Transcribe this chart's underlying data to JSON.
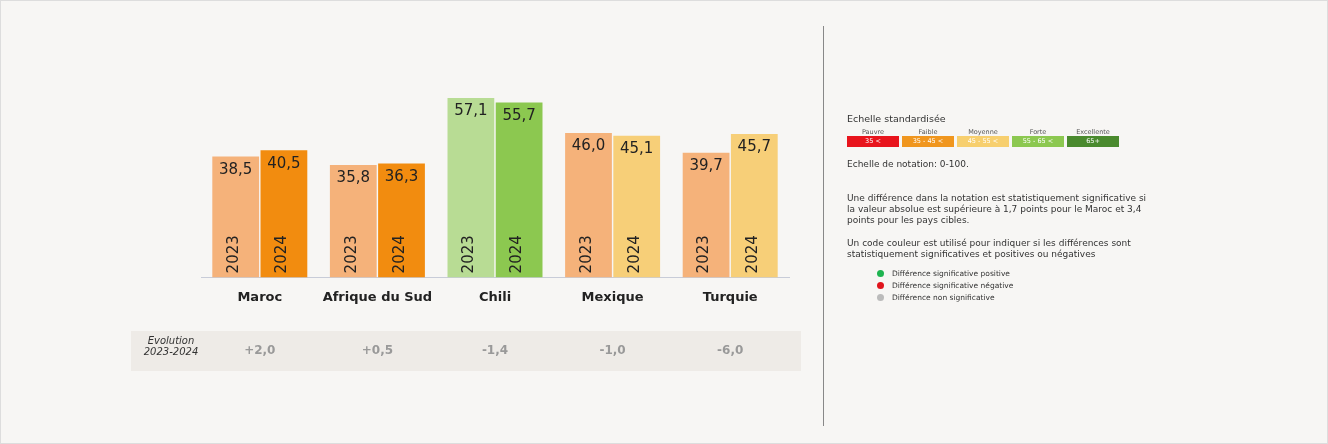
{
  "chart_data": {
    "type": "bar",
    "categories": [
      "Maroc",
      "Afrique du Sud",
      "Chili",
      "Mexique",
      "Turquie"
    ],
    "series": [
      {
        "name": "2023",
        "colors": [
          "#f5b27a",
          "#f5b27a",
          "#b8dc94",
          "#f5b27a",
          "#f5b27a"
        ],
        "values": [
          38.5,
          35.8,
          57.1,
          46.0,
          39.7
        ],
        "value_labels": [
          "38,5",
          "35,8",
          "57,1",
          "46,0",
          "39,7"
        ]
      },
      {
        "name": "2024",
        "colors": [
          "#f28c0f",
          "#f28c0f",
          "#8cc850",
          "#f7cf78",
          "#f7cf78"
        ],
        "values": [
          40.5,
          36.3,
          55.7,
          45.1,
          45.7
        ],
        "value_labels": [
          "40,5",
          "36,3",
          "55,7",
          "45,1",
          "45,7"
        ]
      }
    ],
    "annotations": [
      "Echelle standardisée",
      "Pauvre",
      "Faible",
      "Moyenne",
      "Forte",
      "Excellente",
      "35 <",
      "35 - 45 <",
      "45 - 55 <",
      "55 - 65 <",
      "65+",
      "Echelle de notation: 0-100.",
      "Une différence dans la notation est statistiquement significative si la valeur absolue est supérieure à 1,7 points pour le Maroc et 3,4 points pour les pays cibles.",
      "Un code couleur est utilisé pour indiquer si les différences sont statistiquement significatives et positives ou négatives",
      "Différence significative positive",
      "Différence significative négative",
      "Différence non significative",
      "Evolution 2023-2024",
      "+2,0",
      "+0,5",
      "-1,4",
      "-1,0",
      "-6,0"
    ],
    "legend": false,
    "grid": false
  }
}
